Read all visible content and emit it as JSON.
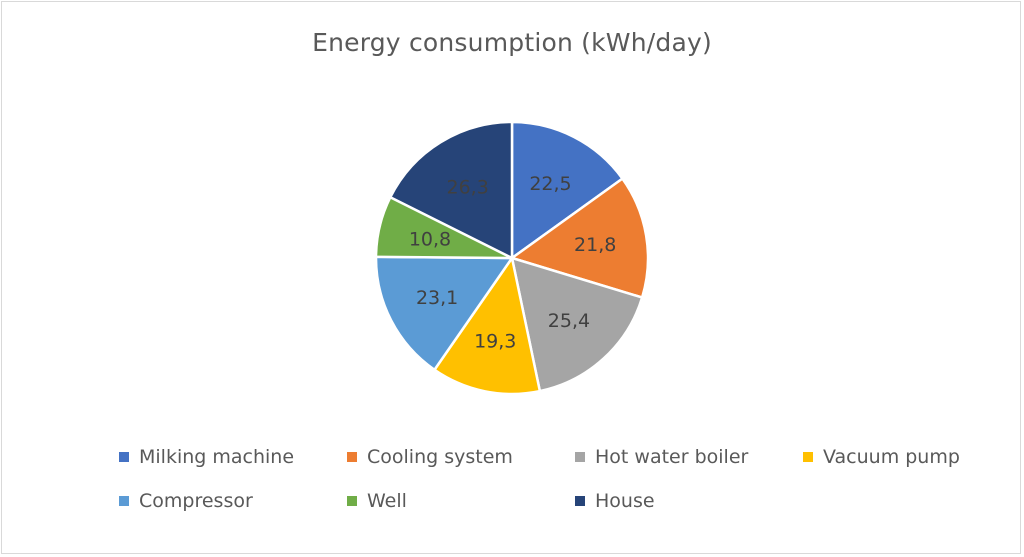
{
  "chart_data": {
    "type": "pie",
    "title": "Energy consumption (kWh/day)",
    "categories": [
      "Milking machine",
      "Cooling system",
      "Hot water boiler",
      "Vacuum pump",
      "Compressor",
      "Well",
      "House"
    ],
    "values": [
      22.5,
      21.8,
      25.4,
      19.3,
      23.1,
      10.8,
      26.3
    ],
    "value_labels": [
      "22,5",
      "21,8",
      "25,4",
      "19,3",
      "23,1",
      "10,8",
      "26,3"
    ],
    "colors": [
      "#4472c4",
      "#ed7d31",
      "#a5a5a5",
      "#ffc000",
      "#5b9bd5",
      "#70ad47",
      "#264478"
    ],
    "label_colors": [
      "#404040",
      "#404040",
      "#404040",
      "#404040",
      "#404040",
      "#404040",
      "#404040"
    ],
    "legend_position": "bottom"
  }
}
